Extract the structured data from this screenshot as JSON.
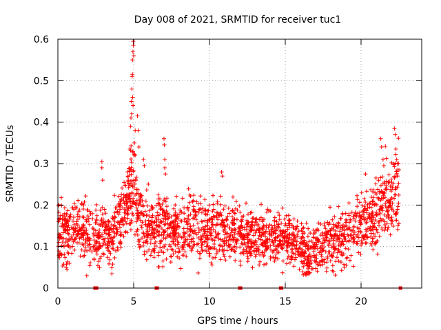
{
  "chart_data": {
    "type": "scatter",
    "title": "Day 008 of 2021, SRMTID for receiver tuc1",
    "xlabel": "GPS time / hours",
    "ylabel": "SRMTID / TECUs",
    "xlim": [
      0,
      24
    ],
    "ylim": [
      0,
      0.6
    ],
    "x_ticks": [
      0,
      5,
      10,
      15,
      20
    ],
    "x_tick_labels": [
      "0",
      "5",
      "10",
      "15",
      "20"
    ],
    "y_ticks": [
      0,
      0.1,
      0.2,
      0.3,
      0.4,
      0.5,
      0.6
    ],
    "y_tick_labels": [
      "0",
      "0.1",
      "0.2",
      "0.3",
      "0.4",
      "0.5",
      "0.6"
    ],
    "grid": true,
    "marker": "plus",
    "series": [
      {
        "name": "SRMTID",
        "color": "#ff0000",
        "profile_hours": [
          0,
          0.5,
          1.0,
          1.5,
          2.0,
          2.5,
          3.0,
          3.5,
          4.0,
          4.5,
          4.8,
          5.0,
          5.3,
          5.6,
          6.0,
          6.5,
          7.0,
          7.5,
          8.0,
          9.0,
          10.0,
          11.0,
          12.0,
          13.0,
          14.0,
          15.0,
          16.0,
          16.5,
          17.0,
          18.0,
          19.0,
          20.0,
          21.0,
          21.5,
          22.0,
          22.5
        ],
        "profile_mean": [
          0.14,
          0.13,
          0.14,
          0.14,
          0.13,
          0.12,
          0.13,
          0.12,
          0.15,
          0.2,
          0.24,
          0.24,
          0.19,
          0.16,
          0.15,
          0.14,
          0.15,
          0.14,
          0.13,
          0.15,
          0.14,
          0.14,
          0.13,
          0.12,
          0.12,
          0.12,
          0.1,
          0.08,
          0.09,
          0.11,
          0.13,
          0.16,
          0.18,
          0.21,
          0.22,
          0.23
        ],
        "profile_spread": [
          0.035,
          0.035,
          0.035,
          0.035,
          0.035,
          0.035,
          0.035,
          0.035,
          0.035,
          0.04,
          0.045,
          0.05,
          0.04,
          0.035,
          0.035,
          0.035,
          0.04,
          0.035,
          0.035,
          0.035,
          0.035,
          0.035,
          0.03,
          0.03,
          0.03,
          0.03,
          0.03,
          0.025,
          0.03,
          0.035,
          0.035,
          0.035,
          0.04,
          0.045,
          0.045,
          0.05
        ],
        "outliers": [
          {
            "x": 2.9,
            "y": 0.305
          },
          {
            "x": 2.9,
            "y": 0.29
          },
          {
            "x": 2.95,
            "y": 0.26
          },
          {
            "x": 4.75,
            "y": 0.335
          },
          {
            "x": 4.8,
            "y": 0.39
          },
          {
            "x": 4.82,
            "y": 0.41
          },
          {
            "x": 4.85,
            "y": 0.45
          },
          {
            "x": 4.88,
            "y": 0.48
          },
          {
            "x": 4.9,
            "y": 0.51
          },
          {
            "x": 4.92,
            "y": 0.515
          },
          {
            "x": 4.92,
            "y": 0.55
          },
          {
            "x": 4.95,
            "y": 0.57
          },
          {
            "x": 4.97,
            "y": 0.595
          },
          {
            "x": 4.98,
            "y": 0.585
          },
          {
            "x": 5.0,
            "y": 0.56
          },
          {
            "x": 4.93,
            "y": 0.46
          },
          {
            "x": 4.96,
            "y": 0.44
          },
          {
            "x": 4.87,
            "y": 0.42
          },
          {
            "x": 5.05,
            "y": 0.35
          },
          {
            "x": 5.1,
            "y": 0.32
          },
          {
            "x": 5.1,
            "y": 0.38
          },
          {
            "x": 5.25,
            "y": 0.415
          },
          {
            "x": 5.3,
            "y": 0.38
          },
          {
            "x": 5.35,
            "y": 0.34
          },
          {
            "x": 5.65,
            "y": 0.31
          },
          {
            "x": 5.7,
            "y": 0.295
          },
          {
            "x": 7.0,
            "y": 0.36
          },
          {
            "x": 7.02,
            "y": 0.345
          },
          {
            "x": 7.05,
            "y": 0.31
          },
          {
            "x": 7.05,
            "y": 0.29
          },
          {
            "x": 7.1,
            "y": 0.275
          },
          {
            "x": 10.8,
            "y": 0.28
          },
          {
            "x": 10.85,
            "y": 0.27
          },
          {
            "x": 21.3,
            "y": 0.36
          },
          {
            "x": 21.35,
            "y": 0.34
          },
          {
            "x": 21.45,
            "y": 0.31
          },
          {
            "x": 21.5,
            "y": 0.295
          },
          {
            "x": 22.2,
            "y": 0.385
          },
          {
            "x": 22.25,
            "y": 0.37
          },
          {
            "x": 22.3,
            "y": 0.335
          },
          {
            "x": 22.35,
            "y": 0.31
          },
          {
            "x": 22.4,
            "y": 0.3
          },
          {
            "x": 22.5,
            "y": 0.285
          },
          {
            "x": 0.55,
            "y": 0.05
          },
          {
            "x": 0.6,
            "y": 0.045
          },
          {
            "x": 1.9,
            "y": 0.03
          },
          {
            "x": 16.3,
            "y": 0.035
          },
          {
            "x": 16.5,
            "y": 0.04
          },
          {
            "x": 0.1,
            "y": 0.08
          }
        ],
        "zero_markers": [
          2.45,
          2.5,
          2.55,
          6.5,
          6.55,
          12.0,
          12.05,
          14.7,
          14.75,
          22.6
        ]
      }
    ]
  }
}
